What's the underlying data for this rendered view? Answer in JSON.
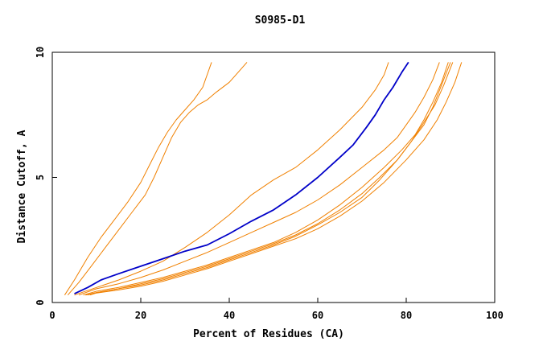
{
  "chart_data": {
    "type": "line",
    "title": "S0985-D1",
    "xlabel": "Percent of Residues (CA)",
    "ylabel": "Distance Cutoff, A",
    "xlim": [
      0,
      100
    ],
    "ylim": [
      0,
      10
    ],
    "xticks": [
      "0",
      "20",
      "40",
      "60",
      "80",
      "100"
    ],
    "yticks": [
      "0",
      "5",
      "10"
    ],
    "grid": false,
    "colors": {
      "highlight": "#0000c8",
      "other": "#f08000"
    },
    "series": [
      {
        "highlight": false,
        "x": [
          2.8,
          5,
          8,
          11,
          14,
          17,
          20,
          22,
          24,
          26,
          28,
          30,
          32,
          34,
          35,
          36
        ],
        "y": [
          0.3,
          0.9,
          1.8,
          2.6,
          3.3,
          4,
          4.8,
          5.5,
          6.2,
          6.8,
          7.3,
          7.7,
          8.1,
          8.6,
          9.1,
          9.6
        ]
      },
      {
        "highlight": false,
        "x": [
          3.5,
          6,
          9,
          12,
          15,
          18,
          21,
          23,
          25,
          27,
          29,
          31,
          33,
          35,
          37,
          40,
          42,
          44
        ],
        "y": [
          0.3,
          0.8,
          1.5,
          2.2,
          2.9,
          3.6,
          4.3,
          5,
          5.8,
          6.6,
          7.2,
          7.6,
          7.9,
          8.1,
          8.4,
          8.8,
          9.2,
          9.6
        ]
      },
      {
        "highlight": true,
        "x": [
          5,
          8,
          11,
          15,
          20,
          25,
          30,
          35,
          40,
          45,
          50,
          55,
          60,
          65,
          68,
          71,
          73,
          75,
          77,
          79,
          80.5
        ],
        "y": [
          0.35,
          0.6,
          0.9,
          1.15,
          1.45,
          1.75,
          2.05,
          2.3,
          2.75,
          3.25,
          3.7,
          4.3,
          5,
          5.8,
          6.3,
          7,
          7.5,
          8.1,
          8.6,
          9.2,
          9.6
        ]
      },
      {
        "highlight": false,
        "x": [
          5,
          10,
          15,
          20,
          25,
          30,
          35,
          40,
          45,
          50,
          55,
          60,
          65,
          70,
          73,
          75,
          76
        ],
        "y": [
          0.3,
          0.6,
          0.9,
          1.25,
          1.65,
          2.2,
          2.8,
          3.5,
          4.3,
          4.9,
          5.4,
          6.1,
          6.9,
          7.8,
          8.5,
          9.1,
          9.6
        ]
      },
      {
        "highlight": false,
        "x": [
          6,
          10,
          15,
          20,
          25,
          30,
          35,
          40,
          45,
          50,
          55,
          60,
          65,
          70,
          75,
          78,
          80,
          82,
          84,
          86,
          87.5
        ],
        "y": [
          0.3,
          0.55,
          0.75,
          1,
          1.3,
          1.65,
          2,
          2.4,
          2.8,
          3.2,
          3.6,
          4.1,
          4.7,
          5.4,
          6.1,
          6.6,
          7.1,
          7.6,
          8.2,
          8.9,
          9.6
        ]
      },
      {
        "highlight": false,
        "x": [
          7,
          10,
          15,
          20,
          25,
          30,
          35,
          40,
          45,
          50,
          55,
          60,
          65,
          70,
          75,
          79,
          82,
          84,
          86,
          88,
          89.5
        ],
        "y": [
          0.3,
          0.45,
          0.6,
          0.8,
          1,
          1.25,
          1.5,
          1.8,
          2.1,
          2.4,
          2.8,
          3.3,
          3.9,
          4.6,
          5.4,
          6.1,
          6.7,
          7.3,
          8,
          8.8,
          9.6
        ]
      },
      {
        "highlight": false,
        "x": [
          7.5,
          10,
          15,
          20,
          25,
          30,
          35,
          40,
          45,
          50,
          55,
          60,
          65,
          70,
          74,
          78,
          81,
          84,
          86,
          88,
          90
        ],
        "y": [
          0.3,
          0.4,
          0.55,
          0.75,
          0.95,
          1.2,
          1.45,
          1.75,
          2.05,
          2.35,
          2.7,
          3.15,
          3.7,
          4.35,
          5,
          5.7,
          6.4,
          7.1,
          7.8,
          8.7,
          9.6
        ]
      },
      {
        "highlight": false,
        "x": [
          8,
          10,
          15,
          20,
          25,
          30,
          35,
          40,
          45,
          50,
          55,
          60,
          65,
          70,
          74,
          78,
          81,
          84,
          86.5,
          88.5,
          90.5
        ],
        "y": [
          0.3,
          0.4,
          0.55,
          0.7,
          0.9,
          1.15,
          1.4,
          1.7,
          2,
          2.3,
          2.65,
          3.1,
          3.6,
          4.2,
          4.9,
          5.7,
          6.4,
          7.2,
          7.9,
          8.7,
          9.6
        ]
      },
      {
        "highlight": false,
        "x": [
          8.5,
          10,
          15,
          20,
          25,
          30,
          35,
          40,
          45,
          50,
          55,
          60,
          65,
          70,
          75,
          80,
          84,
          87,
          89,
          91,
          92.5
        ],
        "y": [
          0.3,
          0.38,
          0.5,
          0.65,
          0.85,
          1.1,
          1.35,
          1.65,
          1.95,
          2.25,
          2.55,
          2.95,
          3.45,
          4.05,
          4.8,
          5.7,
          6.5,
          7.3,
          8,
          8.8,
          9.6
        ]
      }
    ]
  }
}
